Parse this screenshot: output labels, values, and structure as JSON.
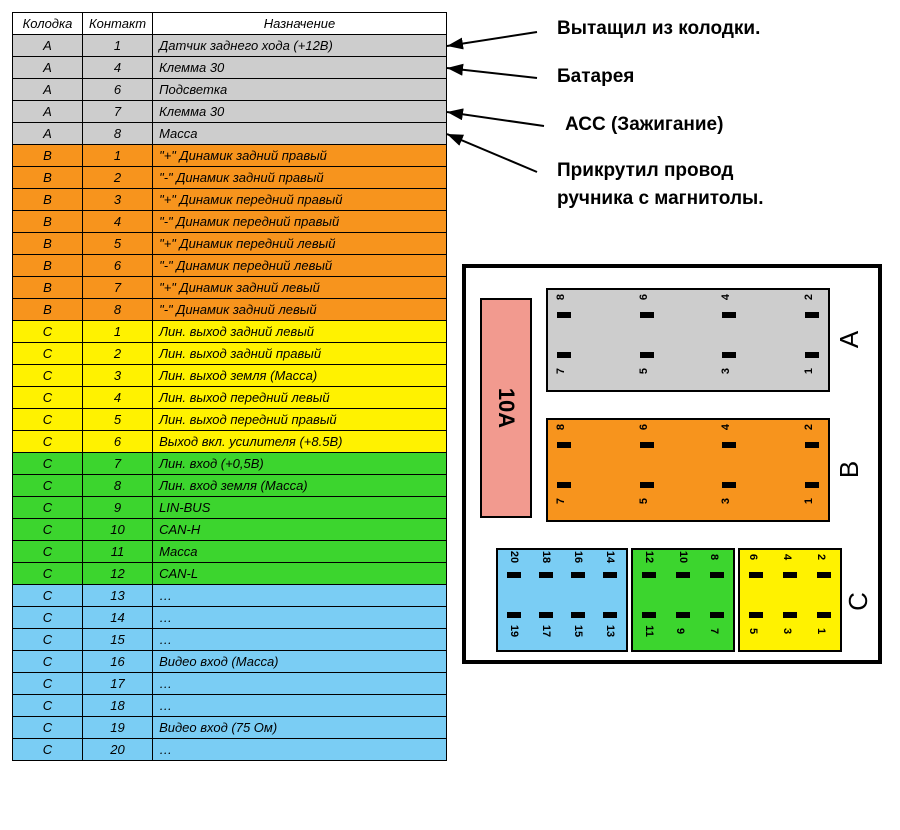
{
  "table": {
    "headers": [
      "Колодка",
      "Контакт",
      "Назначение"
    ],
    "rows": [
      {
        "k": "A",
        "c": "1",
        "n": "Датчик заднего хода (+12В)",
        "bg": "#cdcdcd"
      },
      {
        "k": "A",
        "c": "4",
        "n": "Клемма 30",
        "bg": "#cdcdcd"
      },
      {
        "k": "A",
        "c": "6",
        "n": "Подсветка",
        "bg": "#cdcdcd"
      },
      {
        "k": "A",
        "c": "7",
        "n": "Клемма 30",
        "bg": "#cdcdcd"
      },
      {
        "k": "A",
        "c": "8",
        "n": "Масса",
        "bg": "#cdcdcd"
      },
      {
        "k": "B",
        "c": "1",
        "n": "\"+\" Динамик задний правый",
        "bg": "#f7941d"
      },
      {
        "k": "B",
        "c": "2",
        "n": "\"-\" Динамик задний правый",
        "bg": "#f7941d"
      },
      {
        "k": "B",
        "c": "3",
        "n": "\"+\" Динамик передний правый",
        "bg": "#f7941d"
      },
      {
        "k": "B",
        "c": "4",
        "n": "\"-\" Динамик передний правый",
        "bg": "#f7941d"
      },
      {
        "k": "B",
        "c": "5",
        "n": "\"+\" Динамик передний левый",
        "bg": "#f7941d"
      },
      {
        "k": "B",
        "c": "6",
        "n": "\"-\" Динамик передний левый",
        "bg": "#f7941d"
      },
      {
        "k": "B",
        "c": "7",
        "n": "\"+\" Динамик задний левый",
        "bg": "#f7941d"
      },
      {
        "k": "B",
        "c": "8",
        "n": "\"-\" Динамик задний левый",
        "bg": "#f7941d"
      },
      {
        "k": "C",
        "c": "1",
        "n": "Лин. выход задний левый",
        "bg": "#fff200"
      },
      {
        "k": "C",
        "c": "2",
        "n": "Лин. выход задний правый",
        "bg": "#fff200"
      },
      {
        "k": "C",
        "c": "3",
        "n": "Лин. выход земля (Масса)",
        "bg": "#fff200"
      },
      {
        "k": "C",
        "c": "4",
        "n": "Лин. выход передний левый",
        "bg": "#fff200"
      },
      {
        "k": "C",
        "c": "5",
        "n": "Лин. выход передний правый",
        "bg": "#fff200"
      },
      {
        "k": "C",
        "c": "6",
        "n": "Выход вкл. усилителя (+8.5В)",
        "bg": "#fff200"
      },
      {
        "k": "C",
        "c": "7",
        "n": "Лин. вход (+0,5В)",
        "bg": "#3cd52e"
      },
      {
        "k": "C",
        "c": "8",
        "n": "Лин. вход земля (Масса)",
        "bg": "#3cd52e"
      },
      {
        "k": "C",
        "c": "9",
        "n": "LIN-BUS",
        "bg": "#3cd52e"
      },
      {
        "k": "C",
        "c": "10",
        "n": "CAN-H",
        "bg": "#3cd52e"
      },
      {
        "k": "C",
        "c": "11",
        "n": "Масса",
        "bg": "#3cd52e"
      },
      {
        "k": "C",
        "c": "12",
        "n": "CAN-L",
        "bg": "#3cd52e"
      },
      {
        "k": "C",
        "c": "13",
        "n": "…",
        "bg": "#7acdf4"
      },
      {
        "k": "C",
        "c": "14",
        "n": "…",
        "bg": "#7acdf4"
      },
      {
        "k": "C",
        "c": "15",
        "n": "…",
        "bg": "#7acdf4"
      },
      {
        "k": "C",
        "c": "16",
        "n": "Видео вход (Масса)",
        "bg": "#7acdf4"
      },
      {
        "k": "C",
        "c": "17",
        "n": "…",
        "bg": "#7acdf4"
      },
      {
        "k": "C",
        "c": "18",
        "n": "…",
        "bg": "#7acdf4"
      },
      {
        "k": "C",
        "c": "19",
        "n": "Видео вход (75 Ом)",
        "bg": "#7acdf4"
      },
      {
        "k": "C",
        "c": "20",
        "n": "…",
        "bg": "#7acdf4"
      }
    ]
  },
  "callouts": {
    "c1": "Вытащил из колодки.",
    "c2": "Батарея",
    "c3": "АСС (Зажигание)",
    "c4a": "Прикрутил провод",
    "c4b": "ручника с магнитолы."
  },
  "connectors": {
    "fuse_label": "10A",
    "fuse_bg": "#f29a8f",
    "A": {
      "bg": "#cdcdcd",
      "pins": [
        1,
        2,
        3,
        4,
        5,
        6,
        7,
        8
      ]
    },
    "B": {
      "bg": "#f7941d",
      "pins": [
        1,
        2,
        3,
        4,
        5,
        6,
        7,
        8
      ]
    },
    "C_blue": {
      "bg": "#7acdf4",
      "pins": [
        13,
        14,
        15,
        16,
        17,
        18,
        19,
        20
      ]
    },
    "C_green": {
      "bg": "#3cd52e",
      "pins": [
        7,
        8,
        9,
        10,
        11,
        12
      ]
    },
    "C_yellow": {
      "bg": "#fff200",
      "pins": [
        1,
        2,
        3,
        4,
        5,
        6
      ]
    }
  },
  "side_labels": {
    "a": "A",
    "b": "B",
    "c": "C"
  },
  "style": {
    "border_color": "#000000",
    "font_family": "Verdana, Arial, sans-serif",
    "table_font_style": "italic",
    "callout_font_weight": "bold",
    "callout_font_size": 19
  }
}
